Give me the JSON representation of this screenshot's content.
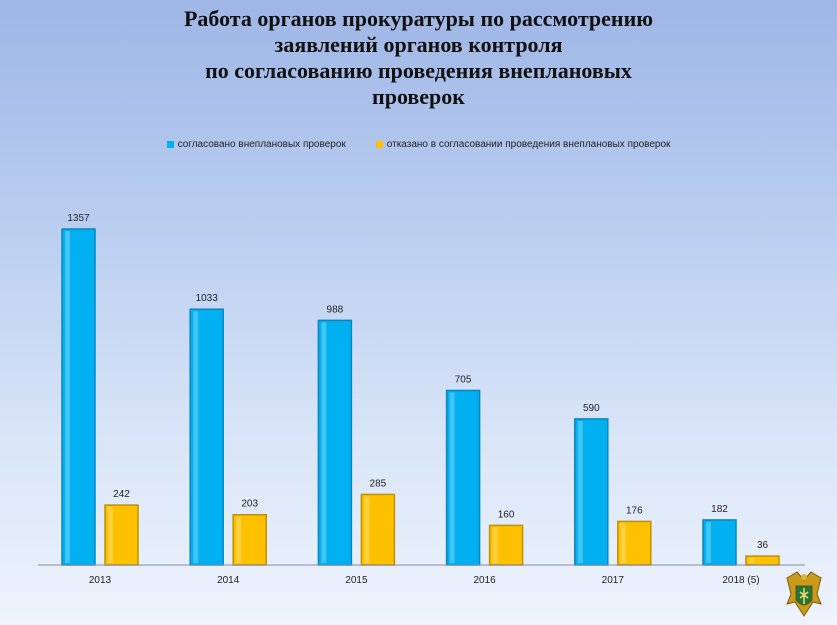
{
  "title_lines": [
    "Работа органов прокуратуры по рассмотрению",
    "заявлений органов контроля",
    "по согласованию проведения внеплановых",
    "проверок"
  ],
  "colors": {
    "series1": "#00b0f0",
    "series1_dark": "#0a86bd",
    "series2": "#ffc000",
    "series2_dark": "#bf9000"
  },
  "emblem": {
    "icon": "prosecutor-emblem-icon"
  },
  "chart_data": {
    "type": "bar",
    "title": "Работа органов прокуратуры по рассмотрению заявлений органов контроля по согласованию проведения внеплановых проверок",
    "categories": [
      "2013",
      "2014",
      "2015",
      "2016",
      "2017",
      "2018 (5)"
    ],
    "series": [
      {
        "name": "согласовано внеплановых проверок",
        "values": [
          1357,
          1033,
          988,
          705,
          590,
          182
        ]
      },
      {
        "name": "отказано в согласовании  проведения внеплановых проверок",
        "values": [
          242,
          203,
          285,
          160,
          176,
          36
        ]
      }
    ],
    "legend_position": "top",
    "grid": false,
    "ylim": [
      0,
      1357
    ]
  }
}
